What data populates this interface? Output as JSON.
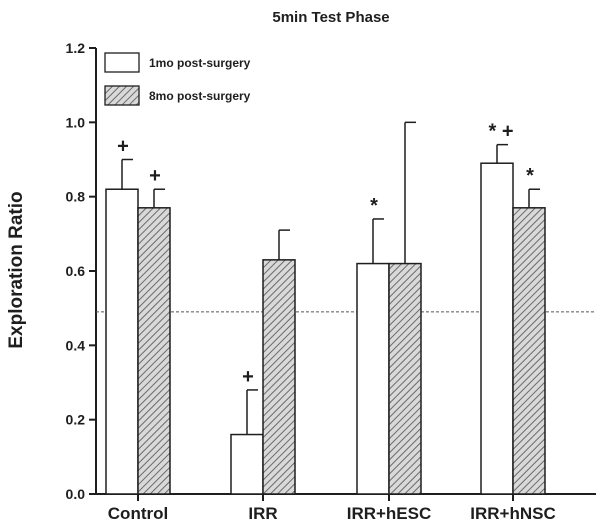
{
  "chart_data": {
    "type": "bar",
    "title": "5min Test Phase",
    "xlabel": "",
    "ylabel": "Exploration Ratio",
    "ylim": [
      0,
      1.2
    ],
    "yticks": [
      "0.0",
      "0.2",
      "0.4",
      "0.6",
      "0.8",
      "1.0",
      "1.2"
    ],
    "categories": [
      "Control",
      "IRR",
      "IRR+hESC",
      "IRR+hNSC"
    ],
    "series": [
      {
        "name": "1mo post-surgery",
        "fill": "#ffffff",
        "pattern": "none",
        "values": [
          0.82,
          0.16,
          0.62,
          0.89
        ],
        "error": [
          0.08,
          0.12,
          0.12,
          0.05
        ],
        "annotations": [
          "+",
          "+",
          "*",
          "* +"
        ]
      },
      {
        "name": "8mo post-surgery",
        "fill": "#bdbdbd",
        "pattern": "diagonal-hatch",
        "values": [
          0.77,
          0.63,
          0.62,
          0.77
        ],
        "error": [
          0.05,
          0.08,
          0.38,
          0.05
        ],
        "annotations": [
          "+",
          "",
          "",
          "*"
        ]
      }
    ],
    "reference_line": 0.49,
    "legend": "top-left",
    "grid": false
  }
}
